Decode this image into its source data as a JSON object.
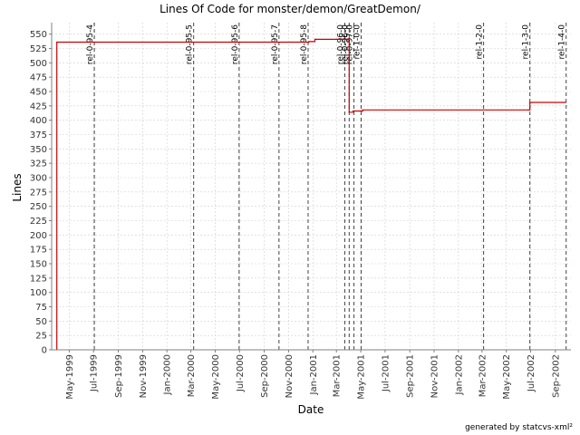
{
  "chart_data": {
    "type": "line",
    "title": "Lines Of Code for monster/demon/GreatDemon/",
    "xlabel": "Date",
    "ylabel": "Lines",
    "credit": "generated by statcvs-xml²",
    "step": true,
    "grid": true,
    "xlim": [
      "1999-03-18",
      "2002-10-10"
    ],
    "ylim": [
      0,
      570
    ],
    "yticks": [
      0,
      25,
      50,
      75,
      100,
      125,
      150,
      175,
      200,
      225,
      250,
      275,
      300,
      325,
      350,
      375,
      400,
      425,
      450,
      475,
      500,
      525,
      550
    ],
    "xticks": [
      {
        "date": "1999-05-01",
        "label": "May-1999"
      },
      {
        "date": "1999-07-01",
        "label": "Jul-1999"
      },
      {
        "date": "1999-09-01",
        "label": "Sep-1999"
      },
      {
        "date": "1999-11-01",
        "label": "Nov-1999"
      },
      {
        "date": "2000-01-01",
        "label": "Jan-2000"
      },
      {
        "date": "2000-03-01",
        "label": "Mar-2000"
      },
      {
        "date": "2000-05-01",
        "label": "May-2000"
      },
      {
        "date": "2000-07-01",
        "label": "Jul-2000"
      },
      {
        "date": "2000-09-01",
        "label": "Sep-2000"
      },
      {
        "date": "2000-11-01",
        "label": "Nov-2000"
      },
      {
        "date": "2001-01-01",
        "label": "Jan-2001"
      },
      {
        "date": "2001-03-01",
        "label": "Mar-2001"
      },
      {
        "date": "2001-05-01",
        "label": "May-2001"
      },
      {
        "date": "2001-07-01",
        "label": "Jul-2001"
      },
      {
        "date": "2001-09-01",
        "label": "Sep-2001"
      },
      {
        "date": "2001-11-01",
        "label": "Nov-2001"
      },
      {
        "date": "2002-01-01",
        "label": "Jan-2002"
      },
      {
        "date": "2002-03-01",
        "label": "Mar-2002"
      },
      {
        "date": "2002-05-01",
        "label": "May-2002"
      },
      {
        "date": "2002-07-01",
        "label": "Jul-2002"
      },
      {
        "date": "2002-09-01",
        "label": "Sep-2002"
      }
    ],
    "series": [
      {
        "color": "#cc0000",
        "points": [
          {
            "x": "1999-03-31",
            "y": 0
          },
          {
            "x": "1999-03-31",
            "y": 536
          },
          {
            "x": "2000-12-22",
            "y": 537
          },
          {
            "x": "2001-01-06",
            "y": 541
          },
          {
            "x": "2001-04-01",
            "y": 537
          },
          {
            "x": "2001-04-02",
            "y": 414
          },
          {
            "x": "2001-04-12",
            "y": 416
          },
          {
            "x": "2001-04-28",
            "y": 416
          },
          {
            "x": "2001-05-06",
            "y": 418
          },
          {
            "x": "2002-06-25",
            "y": 418
          },
          {
            "x": "2002-06-29",
            "y": 431
          },
          {
            "x": "2002-09-27",
            "y": 431
          }
        ]
      }
    ],
    "markers": [
      {
        "date": "1999-07-03",
        "label": "rel-0-95-4"
      },
      {
        "date": "2000-03-08",
        "label": "rel-0-95-5"
      },
      {
        "date": "2000-06-30",
        "label": "rel-0-95-6"
      },
      {
        "date": "2000-10-08",
        "label": "rel-0-95-7"
      },
      {
        "date": "2000-12-20",
        "label": "rel-0-95-8"
      },
      {
        "date": "2001-03-22",
        "label": "rel-0-96-0"
      },
      {
        "date": "2001-04-02",
        "label": "rel-0-96-0"
      },
      {
        "date": "2001-04-14",
        "label": "rel-0-97-0"
      },
      {
        "date": "2001-05-02",
        "label": "rel-1-0-0"
      },
      {
        "date": "2002-03-05",
        "label": "rel-1-2-0"
      },
      {
        "date": "2002-06-29",
        "label": "rel-1-3-0"
      },
      {
        "date": "2002-09-28",
        "label": "rel-1-4-0"
      }
    ],
    "colors": {
      "background": "#ffffff",
      "grid": "#d0d0d0",
      "axis": "#808080",
      "marker": "#444444",
      "text": "#000000"
    }
  }
}
